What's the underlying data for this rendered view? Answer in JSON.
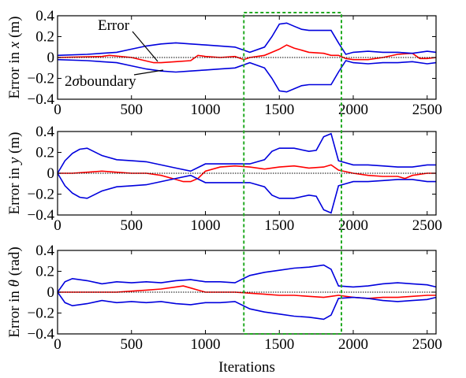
{
  "chart_data": [
    {
      "type": "line",
      "ylabel": "Error in x (m)",
      "ylabel_prefix": "Error in ",
      "ylabel_var": "x",
      "ylabel_unit": " (m)",
      "ylim": [
        -0.4,
        0.4
      ],
      "xlim": [
        0,
        2560
      ],
      "yticks": [
        -0.4,
        -0.2,
        0,
        0.2,
        0.4
      ],
      "yticklabels": [
        "−0.4",
        "−0.2",
        "0",
        "0.2",
        "0.4"
      ],
      "xticks": [
        0,
        500,
        1000,
        1500,
        2000,
        2500
      ],
      "xticklabels": [
        "0",
        "500",
        "1000",
        "1500",
        "2000",
        "2500"
      ],
      "series": [
        {
          "name": "Error",
          "color": "#ff0000",
          "x": [
            0,
            300,
            350,
            500,
            650,
            700,
            800,
            900,
            950,
            1000,
            1100,
            1200,
            1260,
            1300,
            1400,
            1450,
            1500,
            1550,
            1600,
            1650,
            1700,
            1800,
            1850,
            1900,
            1950,
            2000,
            2100,
            2200,
            2300,
            2400,
            2450,
            2500,
            2560
          ],
          "y": [
            0.0,
            0.01,
            0.02,
            0.0,
            -0.05,
            -0.05,
            -0.04,
            -0.03,
            0.02,
            0.01,
            0.0,
            0.01,
            -0.02,
            0.0,
            0.02,
            0.05,
            0.08,
            0.12,
            0.09,
            0.07,
            0.05,
            0.04,
            0.02,
            0.02,
            -0.01,
            -0.02,
            -0.02,
            0.0,
            0.03,
            0.04,
            -0.01,
            -0.01,
            0.0
          ]
        },
        {
          "name": "2σ boundary",
          "color": "#0000dd",
          "x": [
            0,
            200,
            400,
            500,
            600,
            700,
            800,
            900,
            1000,
            1100,
            1200,
            1300,
            1400,
            1450,
            1500,
            1550,
            1600,
            1650,
            1700,
            1800,
            1850,
            1900,
            1950,
            2000,
            2100,
            2200,
            2300,
            2400,
            2500,
            2560
          ],
          "y": [
            0.02,
            0.03,
            0.05,
            0.08,
            0.11,
            0.13,
            0.14,
            0.13,
            0.12,
            0.11,
            0.1,
            0.05,
            0.1,
            0.2,
            0.32,
            0.33,
            0.3,
            0.27,
            0.26,
            0.26,
            0.26,
            0.14,
            0.03,
            0.05,
            0.06,
            0.05,
            0.05,
            0.04,
            0.06,
            0.05
          ]
        },
        {
          "color": "#0000dd",
          "x": [
            0,
            200,
            400,
            500,
            600,
            700,
            800,
            900,
            1000,
            1100,
            1200,
            1300,
            1400,
            1450,
            1500,
            1550,
            1600,
            1650,
            1700,
            1800,
            1850,
            1900,
            1950,
            2000,
            2100,
            2200,
            2300,
            2400,
            2500,
            2560
          ],
          "y": [
            -0.02,
            -0.03,
            -0.05,
            -0.08,
            -0.11,
            -0.13,
            -0.14,
            -0.13,
            -0.12,
            -0.11,
            -0.1,
            -0.05,
            -0.1,
            -0.2,
            -0.32,
            -0.33,
            -0.3,
            -0.27,
            -0.26,
            -0.26,
            -0.26,
            -0.14,
            -0.03,
            -0.05,
            -0.06,
            -0.05,
            -0.05,
            -0.04,
            -0.06,
            -0.05
          ]
        },
        {
          "color": "#000000",
          "dashed": true,
          "x": [
            0,
            2560
          ],
          "y": [
            0,
            0
          ]
        }
      ],
      "annotations": [
        {
          "text": "Error"
        },
        {
          "text": "2σ boundary",
          "text_prefix": "2",
          "text_sigma": "σ",
          "text_rest": "boundary"
        }
      ]
    },
    {
      "type": "line",
      "ylabel": "Error in y (m)",
      "ylabel_prefix": "Error in ",
      "ylabel_var": "y",
      "ylabel_unit": " (m)",
      "ylim": [
        -0.4,
        0.4
      ],
      "xlim": [
        0,
        2560
      ],
      "yticks": [
        -0.4,
        -0.2,
        0,
        0.2,
        0.4
      ],
      "yticklabels": [
        "−0.4",
        "−0.2",
        "0",
        "0.2",
        "0.4"
      ],
      "xticks": [
        0,
        500,
        1000,
        1500,
        2000,
        2500
      ],
      "xticklabels": [
        "0",
        "500",
        "1000",
        "1500",
        "2000",
        "2500"
      ],
      "series": [
        {
          "color": "#ff0000",
          "x": [
            0,
            100,
            200,
            300,
            400,
            500,
            600,
            700,
            800,
            850,
            900,
            950,
            1000,
            1100,
            1200,
            1300,
            1400,
            1500,
            1600,
            1700,
            1800,
            1850,
            1900,
            2000,
            2100,
            2200,
            2300,
            2350,
            2400,
            2500,
            2560
          ],
          "y": [
            0.0,
            0.0,
            0.01,
            0.02,
            0.01,
            0.0,
            0.0,
            -0.02,
            -0.06,
            -0.08,
            -0.08,
            -0.05,
            0.02,
            0.06,
            0.07,
            0.06,
            0.04,
            0.06,
            0.07,
            0.05,
            0.06,
            0.08,
            0.03,
            0.0,
            -0.02,
            -0.03,
            -0.03,
            -0.05,
            -0.02,
            0.0,
            0.0
          ]
        },
        {
          "color": "#0000dd",
          "x": [
            0,
            50,
            100,
            150,
            200,
            300,
            400,
            500,
            600,
            700,
            800,
            900,
            1000,
            1100,
            1200,
            1300,
            1400,
            1450,
            1500,
            1600,
            1700,
            1750,
            1800,
            1850,
            1900,
            2000,
            2100,
            2200,
            2300,
            2400,
            2500,
            2560
          ],
          "y": [
            0.0,
            0.12,
            0.19,
            0.23,
            0.24,
            0.17,
            0.13,
            0.12,
            0.11,
            0.08,
            0.05,
            0.02,
            0.09,
            0.09,
            0.09,
            0.09,
            0.13,
            0.21,
            0.24,
            0.24,
            0.21,
            0.22,
            0.35,
            0.38,
            0.12,
            0.08,
            0.08,
            0.07,
            0.06,
            0.06,
            0.08,
            0.08
          ]
        },
        {
          "color": "#0000dd",
          "x": [
            0,
            50,
            100,
            150,
            200,
            300,
            400,
            500,
            600,
            700,
            800,
            900,
            1000,
            1100,
            1200,
            1300,
            1400,
            1450,
            1500,
            1600,
            1700,
            1750,
            1800,
            1850,
            1900,
            2000,
            2100,
            2200,
            2300,
            2400,
            2500,
            2560
          ],
          "y": [
            0.0,
            -0.12,
            -0.19,
            -0.23,
            -0.24,
            -0.17,
            -0.13,
            -0.12,
            -0.11,
            -0.08,
            -0.05,
            -0.02,
            -0.09,
            -0.09,
            -0.09,
            -0.09,
            -0.13,
            -0.21,
            -0.24,
            -0.24,
            -0.21,
            -0.22,
            -0.35,
            -0.38,
            -0.12,
            -0.08,
            -0.08,
            -0.07,
            -0.06,
            -0.06,
            -0.08,
            -0.08
          ]
        },
        {
          "color": "#000000",
          "dashed": true,
          "x": [
            0,
            2560
          ],
          "y": [
            0,
            0
          ]
        }
      ]
    },
    {
      "type": "line",
      "ylabel": "Error in θ (rad)",
      "ylabel_prefix": "Error in ",
      "ylabel_var": "θ",
      "ylabel_unit": " (rad)",
      "ylim": [
        -0.4,
        0.4
      ],
      "xlim": [
        0,
        2560
      ],
      "yticks": [
        -0.4,
        -0.2,
        0,
        0.2,
        0.4
      ],
      "yticklabels": [
        "−0.4",
        "−0.2",
        "0",
        "0.2",
        "0.4"
      ],
      "xticks": [
        0,
        500,
        1000,
        1500,
        2000,
        2500
      ],
      "xticklabels": [
        "0",
        "500",
        "1000",
        "1500",
        "2000",
        "2500"
      ],
      "xlabel": "Iterations",
      "series": [
        {
          "color": "#ff0000",
          "x": [
            0,
            200,
            400,
            500,
            600,
            700,
            800,
            850,
            900,
            950,
            1000,
            1100,
            1200,
            1300,
            1400,
            1500,
            1600,
            1700,
            1800,
            1850,
            1900,
            2000,
            2100,
            2200,
            2300,
            2400,
            2500,
            2560
          ],
          "y": [
            0.0,
            0.0,
            0.0,
            0.01,
            0.02,
            0.03,
            0.05,
            0.06,
            0.04,
            0.02,
            0.0,
            0.0,
            0.0,
            -0.01,
            -0.02,
            -0.03,
            -0.03,
            -0.04,
            -0.05,
            -0.04,
            -0.03,
            -0.05,
            -0.06,
            -0.05,
            -0.05,
            -0.04,
            -0.03,
            -0.03
          ]
        },
        {
          "color": "#0000dd",
          "x": [
            0,
            50,
            100,
            200,
            300,
            400,
            500,
            600,
            700,
            800,
            900,
            1000,
            1100,
            1200,
            1300,
            1400,
            1500,
            1600,
            1700,
            1750,
            1800,
            1850,
            1900,
            2000,
            2100,
            2200,
            2300,
            2400,
            2500,
            2560
          ],
          "y": [
            0.0,
            0.1,
            0.13,
            0.11,
            0.08,
            0.1,
            0.09,
            0.1,
            0.09,
            0.11,
            0.12,
            0.1,
            0.1,
            0.09,
            0.16,
            0.19,
            0.21,
            0.23,
            0.24,
            0.25,
            0.26,
            0.22,
            0.06,
            0.05,
            0.06,
            0.08,
            0.09,
            0.08,
            0.07,
            0.05
          ]
        },
        {
          "color": "#0000dd",
          "x": [
            0,
            50,
            100,
            200,
            300,
            400,
            500,
            600,
            700,
            800,
            900,
            1000,
            1100,
            1200,
            1300,
            1400,
            1500,
            1600,
            1700,
            1750,
            1800,
            1850,
            1900,
            2000,
            2100,
            2200,
            2300,
            2400,
            2500,
            2560
          ],
          "y": [
            0.0,
            -0.1,
            -0.13,
            -0.11,
            -0.08,
            -0.1,
            -0.09,
            -0.1,
            -0.09,
            -0.11,
            -0.12,
            -0.1,
            -0.1,
            -0.09,
            -0.16,
            -0.19,
            -0.21,
            -0.23,
            -0.24,
            -0.25,
            -0.26,
            -0.22,
            -0.06,
            -0.05,
            -0.06,
            -0.08,
            -0.09,
            -0.08,
            -0.07,
            -0.05
          ]
        },
        {
          "color": "#000000",
          "dashed": true,
          "x": [
            0,
            2560
          ],
          "y": [
            0,
            0
          ]
        }
      ]
    }
  ],
  "highlight": {
    "color": "#22aa22",
    "x": [
      1260,
      1920
    ]
  }
}
